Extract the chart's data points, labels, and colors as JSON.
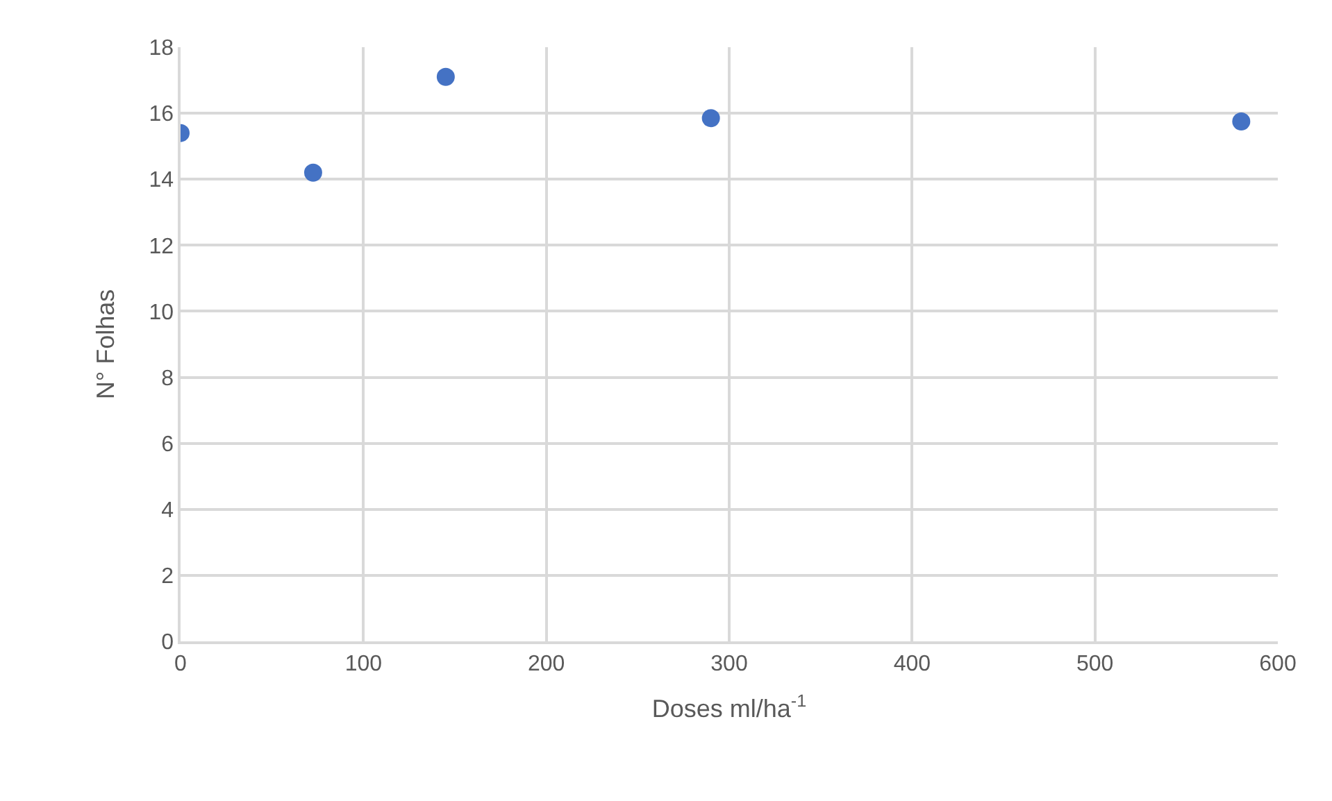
{
  "chart_data": {
    "type": "scatter",
    "xlabel": "Doses ml/ha$^{-1}$",
    "ylabel": "N° Folhas",
    "x": [
      0,
      72.5,
      145,
      290,
      580
    ],
    "values": [
      15.4,
      14.2,
      17.1,
      15.85,
      15.75
    ],
    "color": "#4472c4",
    "marker": "circle",
    "xlim": [
      0,
      600
    ],
    "xticks": [
      0,
      100,
      200,
      300,
      400,
      500,
      600
    ],
    "ylim": [
      0,
      18
    ],
    "yticks": [
      0,
      2,
      4,
      6,
      8,
      10,
      12,
      14,
      16,
      18
    ],
    "grid": true,
    "legend": false
  }
}
